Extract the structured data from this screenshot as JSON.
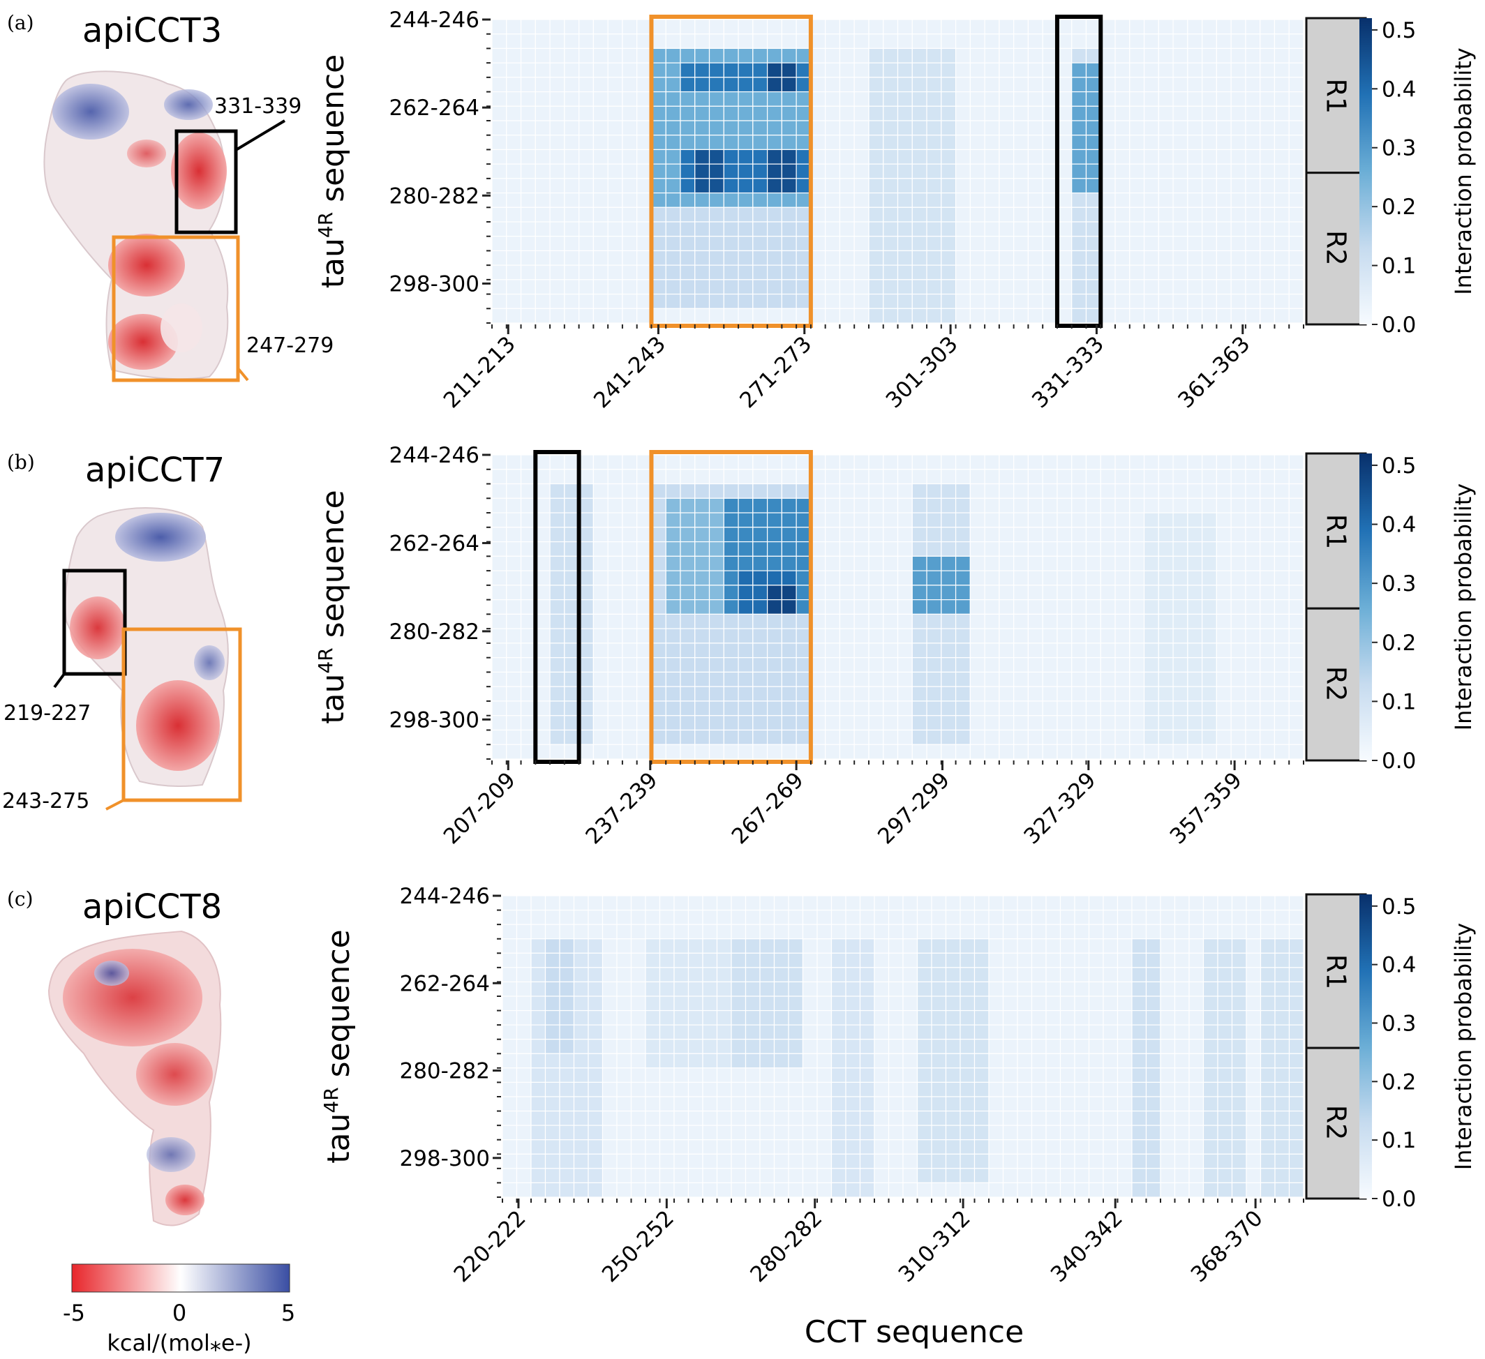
{
  "colors": {
    "heat_low": "#f7fbff",
    "heat_high": "#08306b",
    "highlight_orange": "#f0912a",
    "highlight_black": "#000000",
    "region_fill": "#d0d0d0",
    "esp_negative": "#e8262b",
    "esp_neutral": "#ffffff",
    "esp_positive": "#3a4ea3"
  },
  "shared": {
    "y_label_main": "tau",
    "y_label_sup": "4R",
    "y_label_rest": " sequence",
    "x_label": "CCT sequence",
    "colorbar_label": "Interaction probability",
    "colorbar_ticks": [
      "0.0",
      "0.1",
      "0.2",
      "0.3",
      "0.4",
      "0.5"
    ],
    "regions": [
      "R1",
      "R2"
    ],
    "y_ticks": [
      "244-246",
      "262-264",
      "280-282",
      "298-300"
    ]
  },
  "esp_legend": {
    "tick_min": "-5",
    "tick_mid": "0",
    "tick_max": "5",
    "unit": "kcal/(mol⁎e-)"
  },
  "panels": [
    {
      "label": "(a)",
      "protein": "apiCCT3",
      "callouts": [
        {
          "text": "331-339",
          "color": "black"
        },
        {
          "text": "247-279",
          "color": "orange"
        }
      ],
      "chart_data": {
        "type": "heatmap",
        "x_tick_labels": [
          "211-213",
          "241-243",
          "271-273",
          "301-303",
          "331-333",
          "361-363"
        ],
        "y_tick_labels": [
          "244-246",
          "262-264",
          "280-282",
          "298-300"
        ],
        "value_range": [
          0.0,
          0.52
        ],
        "cols": 56,
        "rows": 21,
        "blocks": [
          {
            "cols": [
              11,
              21
            ],
            "rows": [
              2,
              12
            ],
            "level": 0.18
          },
          {
            "cols": [
              13,
              21
            ],
            "rows": [
              3,
              4
            ],
            "level": 0.35
          },
          {
            "cols": [
              13,
              21
            ],
            "rows": [
              9,
              11
            ],
            "level": 0.38
          },
          {
            "cols": [
              19,
              20
            ],
            "rows": [
              3,
              4
            ],
            "level": 0.47
          },
          {
            "cols": [
              14,
              15
            ],
            "rows": [
              9,
              11
            ],
            "level": 0.45
          },
          {
            "cols": [
              19,
              20
            ],
            "rows": [
              9,
              11
            ],
            "level": 0.46
          },
          {
            "cols": [
              11,
              21
            ],
            "rows": [
              12,
              19
            ],
            "level": 0.1
          },
          {
            "cols": [
              26,
              31
            ],
            "rows": [
              2,
              20
            ],
            "level": 0.07
          },
          {
            "cols": [
              40,
              41
            ],
            "rows": [
              2,
              20
            ],
            "level": 0.08
          },
          {
            "cols": [
              40,
              41
            ],
            "rows": [
              3,
              11
            ],
            "level": 0.2
          }
        ]
      },
      "highlights": [
        {
          "color": "orange",
          "cols": [
            11,
            22
          ]
        },
        {
          "color": "black",
          "cols": [
            39,
            42
          ]
        }
      ]
    },
    {
      "label": "(b)",
      "protein": "apiCCT7",
      "callouts": [
        {
          "text": "219-227",
          "color": "black"
        },
        {
          "text": "243-275",
          "color": "orange"
        }
      ],
      "chart_data": {
        "type": "heatmap",
        "x_tick_labels": [
          "207-209",
          "237-239",
          "267-269",
          "297-299",
          "327-329",
          "357-359"
        ],
        "y_tick_labels": [
          "244-246",
          "262-264",
          "280-282",
          "298-300"
        ],
        "value_range": [
          0.0,
          0.52
        ],
        "cols": 56,
        "rows": 21,
        "blocks": [
          {
            "cols": [
              4,
              6
            ],
            "rows": [
              2,
              19
            ],
            "level": 0.08
          },
          {
            "cols": [
              11,
              21
            ],
            "rows": [
              2,
              19
            ],
            "level": 0.1
          },
          {
            "cols": [
              12,
              21
            ],
            "rows": [
              3,
              10
            ],
            "level": 0.16
          },
          {
            "cols": [
              16,
              21
            ],
            "rows": [
              3,
              10
            ],
            "level": 0.27
          },
          {
            "cols": [
              17,
              20
            ],
            "rows": [
              8,
              10
            ],
            "level": 0.4
          },
          {
            "cols": [
              19,
              20
            ],
            "rows": [
              9,
              10
            ],
            "level": 0.48
          },
          {
            "cols": [
              29,
              32
            ],
            "rows": [
              2,
              19
            ],
            "level": 0.08
          },
          {
            "cols": [
              29,
              32
            ],
            "rows": [
              7,
              10
            ],
            "level": 0.22
          },
          {
            "cols": [
              45,
              49
            ],
            "rows": [
              4,
              19
            ],
            "level": 0.04
          }
        ]
      },
      "highlights": [
        {
          "color": "black",
          "cols": [
            3,
            6
          ]
        },
        {
          "color": "orange",
          "cols": [
            11,
            22
          ]
        }
      ]
    },
    {
      "label": "(c)",
      "protein": "apiCCT8",
      "callouts": [],
      "chart_data": {
        "type": "heatmap",
        "x_tick_labels": [
          "220-222",
          "250-252",
          "280-282",
          "310-312",
          "340-342",
          "368-370"
        ],
        "y_tick_labels": [
          "244-246",
          "262-264",
          "280-282",
          "298-300"
        ],
        "value_range": [
          0.0,
          0.52
        ],
        "cols": 56,
        "rows": 21,
        "blocks": [
          {
            "cols": [
              2,
              6
            ],
            "rows": [
              3,
              20
            ],
            "level": 0.06
          },
          {
            "cols": [
              3,
              4
            ],
            "rows": [
              3,
              10
            ],
            "level": 0.1
          },
          {
            "cols": [
              10,
              18
            ],
            "rows": [
              3,
              11
            ],
            "level": 0.05
          },
          {
            "cols": [
              16,
              20
            ],
            "rows": [
              3,
              11
            ],
            "level": 0.08
          },
          {
            "cols": [
              23,
              25
            ],
            "rows": [
              3,
              20
            ],
            "level": 0.06
          },
          {
            "cols": [
              29,
              33
            ],
            "rows": [
              3,
              19
            ],
            "level": 0.07
          },
          {
            "cols": [
              44,
              45
            ],
            "rows": [
              3,
              20
            ],
            "level": 0.08
          },
          {
            "cols": [
              49,
              51
            ],
            "rows": [
              3,
              20
            ],
            "level": 0.07
          },
          {
            "cols": [
              53,
              55
            ],
            "rows": [
              3,
              20
            ],
            "level": 0.07
          }
        ]
      },
      "highlights": []
    }
  ]
}
